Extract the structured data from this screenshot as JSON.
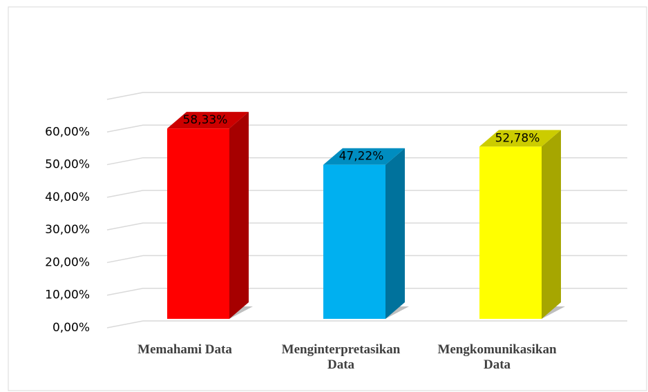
{
  "chart_data": {
    "type": "bar3d",
    "categories": [
      "Memahami Data",
      "Menginterpretasikan Data",
      "Mengkomunikasikan Data"
    ],
    "values": [
      58.33,
      47.22,
      52.78
    ],
    "value_labels": [
      "58,33%",
      "47,22%",
      "52,78%"
    ],
    "colors": [
      "#ff0000",
      "#00b0f0",
      "#ffff00"
    ],
    "ylim": [
      0,
      70
    ],
    "yticks": [
      {
        "value": 0,
        "label": "0,00%"
      },
      {
        "value": 10,
        "label": "10,00%"
      },
      {
        "value": 20,
        "label": "20,00%"
      },
      {
        "value": 30,
        "label": "30,00%"
      },
      {
        "value": 40,
        "label": "40,00%"
      },
      {
        "value": 50,
        "label": "50,00%"
      },
      {
        "value": 60,
        "label": "60,00%"
      }
    ],
    "grid": true
  }
}
